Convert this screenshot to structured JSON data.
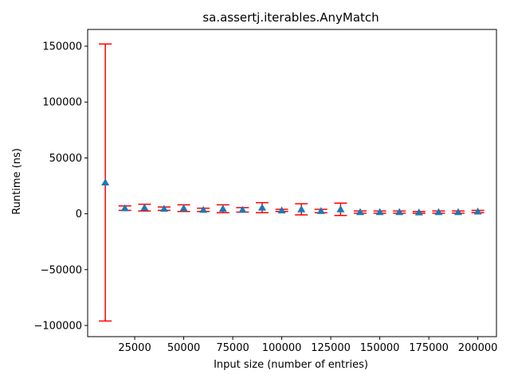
{
  "chart_data": {
    "type": "scatter",
    "title": "sa.assertj.iterables.AnyMatch",
    "xlabel": "Input size (number of entries)",
    "ylabel": "Runtime (ns)",
    "xlim": [
      1000,
      209500
    ],
    "ylim": [
      -110000,
      165000
    ],
    "x_ticks": [
      25000,
      50000,
      75000,
      100000,
      125000,
      150000,
      175000,
      200000
    ],
    "x_tick_labels": [
      "25000",
      "50000",
      "75000",
      "100000",
      "125000",
      "150000",
      "175000",
      "200000"
    ],
    "y_ticks": [
      -100000,
      -50000,
      0,
      50000,
      100000,
      150000
    ],
    "y_tick_labels": [
      "−100000",
      "−50000",
      "0",
      "50000",
      "100000",
      "150000"
    ],
    "grid": false,
    "marker": "triangle-up",
    "marker_color": "#1f77b4",
    "errorbar_color": "#ff0000",
    "series": [
      {
        "points": [
          {
            "x": 10000,
            "y": 28000,
            "err": 124000
          },
          {
            "x": 20000,
            "y": 5000,
            "err": 2000
          },
          {
            "x": 30000,
            "y": 5500,
            "err": 3000
          },
          {
            "x": 40000,
            "y": 4500,
            "err": 1500
          },
          {
            "x": 50000,
            "y": 5000,
            "err": 3000
          },
          {
            "x": 60000,
            "y": 3500,
            "err": 1500
          },
          {
            "x": 70000,
            "y": 4500,
            "err": 3500
          },
          {
            "x": 80000,
            "y": 3500,
            "err": 2000
          },
          {
            "x": 90000,
            "y": 5500,
            "err": 4500
          },
          {
            "x": 100000,
            "y": 3000,
            "err": 1000
          },
          {
            "x": 110000,
            "y": 4000,
            "err": 5000
          },
          {
            "x": 120000,
            "y": 2500,
            "err": 1500
          },
          {
            "x": 130000,
            "y": 4000,
            "err": 5500
          },
          {
            "x": 140000,
            "y": 1500,
            "err": 1000
          },
          {
            "x": 150000,
            "y": 1500,
            "err": 1000
          },
          {
            "x": 160000,
            "y": 1500,
            "err": 1000
          },
          {
            "x": 170000,
            "y": 1200,
            "err": 800
          },
          {
            "x": 180000,
            "y": 1500,
            "err": 1000
          },
          {
            "x": 190000,
            "y": 1500,
            "err": 1000
          },
          {
            "x": 200000,
            "y": 2000,
            "err": 1000
          }
        ]
      }
    ]
  }
}
